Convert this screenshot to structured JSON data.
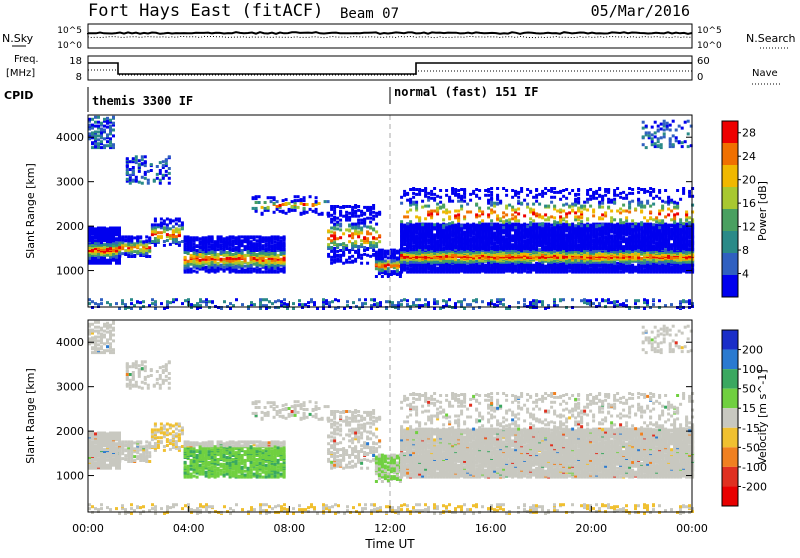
{
  "header": {
    "station": "Fort Hays East (fitACF)",
    "beam": "Beam 07",
    "date": "05/Mar/2016"
  },
  "noise_panel": {
    "left_label": "N.Sky",
    "right_label": "N.Search",
    "ticks": [
      "10^5",
      "10^0"
    ]
  },
  "freq_panel": {
    "left_label_1": "Freq.",
    "left_label_2": "[MHz]",
    "left_ticks": [
      "18",
      "8"
    ],
    "right_label": "Nave",
    "right_ticks": [
      "60",
      "0"
    ]
  },
  "cpid_panel": {
    "label": "CPID",
    "modes": [
      {
        "name": "themis 3300 IF",
        "start_hour": 0
      },
      {
        "name": "normal (fast) 151 IF",
        "start_hour": 12
      }
    ]
  },
  "chart_data": [
    {
      "type": "heatmap",
      "name": "power",
      "title": "",
      "xlabel": "",
      "ylabel": "Slant Range [km]",
      "x_unit_hours": [
        0,
        24
      ],
      "ylim": [
        180,
        4500
      ],
      "y_ticks": [
        "1000",
        "2000",
        "3000",
        "4000"
      ],
      "colorbar": {
        "label": "Power [dB]",
        "ticks": [
          "28",
          "24",
          "20",
          "16",
          "12",
          "8",
          "4"
        ],
        "tick_values": [
          28,
          24,
          20,
          16,
          12,
          8,
          4
        ],
        "range": [
          0,
          30
        ],
        "colors": [
          "#0000ee",
          "#3060c0",
          "#2a8a88",
          "#4aa060",
          "#a8c830",
          "#f0b800",
          "#f07000",
          "#ee0000"
        ]
      }
    },
    {
      "type": "heatmap",
      "name": "velocity",
      "title": "",
      "xlabel": "Time UT",
      "ylabel": "Slant Range [km]",
      "x_unit_hours": [
        0,
        24
      ],
      "ylim": [
        180,
        4500
      ],
      "y_ticks": [
        "1000",
        "2000",
        "3000",
        "4000"
      ],
      "x_ticks": [
        "00:00",
        "04:00",
        "08:00",
        "12:00",
        "16:00",
        "20:00",
        "00:00"
      ],
      "colorbar": {
        "label": "Velocity [m s^-1]",
        "ticks": [
          "200",
          "100",
          "50",
          "15",
          "-15",
          "-50",
          "-100",
          "-200"
        ],
        "colors": [
          "#1a2ec8",
          "#2a7ad0",
          "#3aa860",
          "#70d040",
          "#c8c8c0",
          "#f0c030",
          "#f08020",
          "#e03020",
          "#e80000"
        ]
      }
    }
  ],
  "colors": {
    "midnight_dash": "#aaaaaa",
    "axis": "#000000"
  }
}
